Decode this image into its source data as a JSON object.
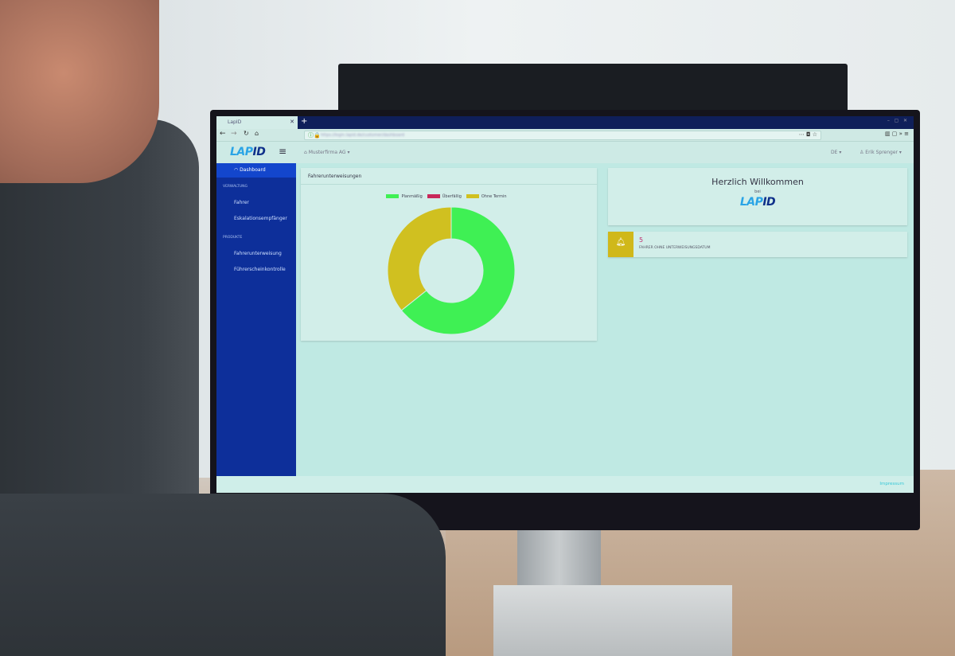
{
  "browser": {
    "tab_title": "LapID",
    "url": "https://login.lapid.de/customer/dashboard"
  },
  "app": {
    "logo_a": "LAP",
    "logo_b": "ID",
    "company": "Musterfirma AG ▾",
    "language": "DE ▾",
    "user": "Erik Sprenger ▾"
  },
  "sidebar": {
    "dashboard": "Dashboard",
    "section_admin": "VERWALTUNG",
    "drivers": "Fahrer",
    "escalation": "Eskalationsempfänger",
    "section_products": "PRODUKTE",
    "instruction": "Fahrerunterweisung",
    "license": "Führerscheinkontrolle"
  },
  "chart_card": {
    "title": "Fahrerunterweisungen"
  },
  "chart_data": {
    "type": "pie",
    "donut": true,
    "categories": [
      "Planmäßig",
      "Überfällig",
      "Ohne Termin"
    ],
    "values": [
      9,
      0,
      5
    ],
    "colors": [
      "#3ff054",
      "#c8285a",
      "#d0c020"
    ],
    "legend": "top"
  },
  "welcome": {
    "title": "Herzlich Willkommen",
    "sub": "bei"
  },
  "alert": {
    "count": "5",
    "label": "FAHRER OHNE UNTERWEISUNGSDATUM",
    "icon": "bell-icon",
    "color": "#d0b81a"
  },
  "footer": {
    "impressum": "Impressum"
  }
}
